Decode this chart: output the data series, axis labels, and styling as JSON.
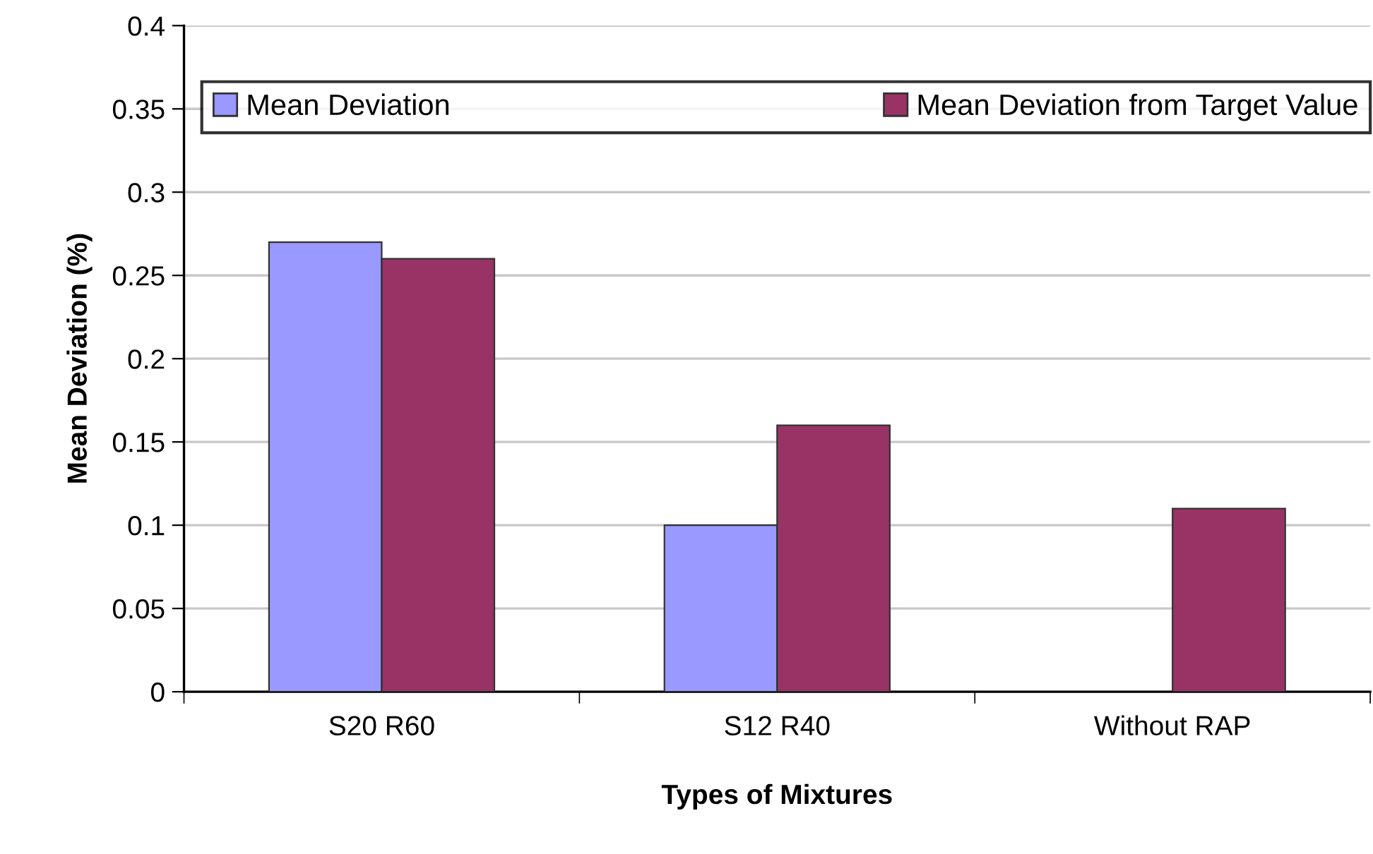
{
  "chart_data": {
    "type": "bar",
    "xlabel": "Types of Mixtures",
    "ylabel": "Mean Deviation (%)",
    "categories": [
      "S20 R60",
      "S12 R40",
      "Without RAP"
    ],
    "series": [
      {
        "name": "Mean Deviation",
        "color": "#9999ff",
        "values": [
          0.27,
          0.1,
          null
        ]
      },
      {
        "name": "Mean Deviation from Target Value",
        "color": "#993366",
        "values": [
          0.26,
          0.16,
          0.11
        ]
      }
    ],
    "ylim": [
      0,
      0.4
    ],
    "yticks": [
      0,
      0.05,
      0.1,
      0.15,
      0.2,
      0.25,
      0.3,
      0.35,
      0.4
    ],
    "grid": "y",
    "legend": "top"
  }
}
